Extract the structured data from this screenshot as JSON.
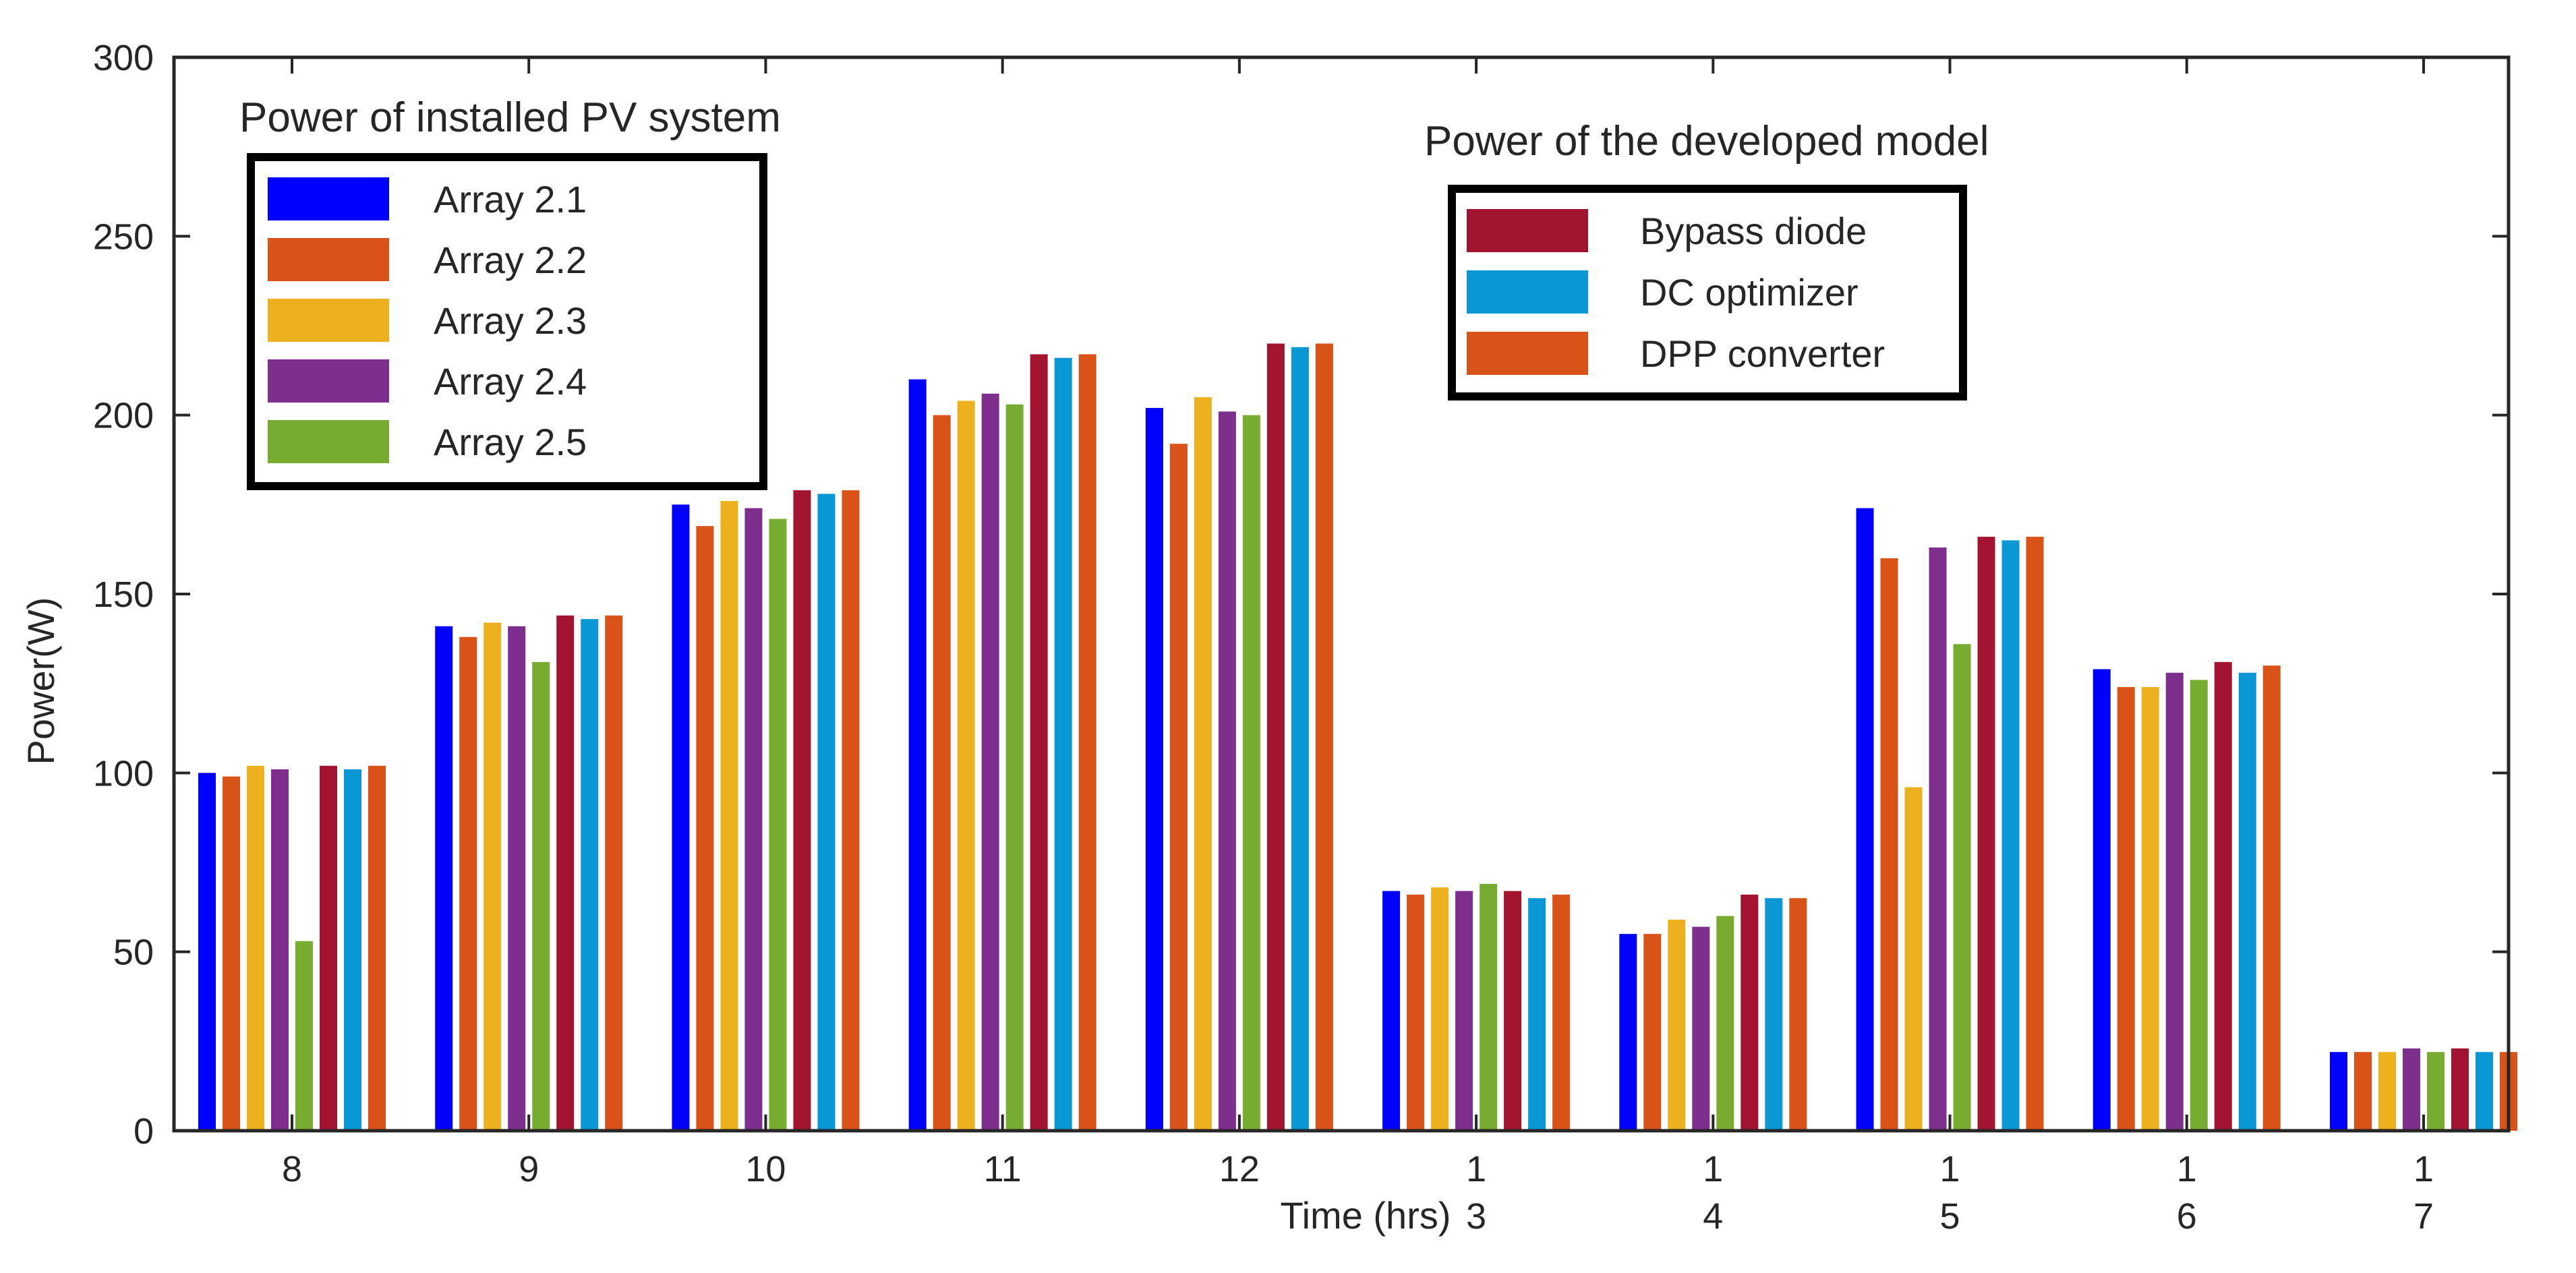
{
  "chart_data": {
    "type": "bar",
    "title": "",
    "xlabel": "Time (hrs)",
    "ylabel": "Power(W)",
    "ylim": [
      0,
      300
    ],
    "yticks": [
      0,
      50,
      100,
      150,
      200,
      250,
      300
    ],
    "grid": false,
    "categories": [
      {
        "line1": "8",
        "line2": ""
      },
      {
        "line1": "9",
        "line2": ""
      },
      {
        "line1": "10",
        "line2": ""
      },
      {
        "line1": "11",
        "line2": ""
      },
      {
        "line1": "12",
        "line2": ""
      },
      {
        "line1": "1",
        "line2": "3"
      },
      {
        "line1": "1",
        "line2": "4"
      },
      {
        "line1": "1",
        "line2": "5"
      },
      {
        "line1": "1",
        "line2": "6"
      },
      {
        "line1": "1",
        "line2": "7"
      }
    ],
    "series": [
      {
        "name": "Array 2.1",
        "color": "#0000ff",
        "values": [
          100,
          141,
          175,
          210,
          202,
          67,
          55,
          174,
          129,
          22
        ]
      },
      {
        "name": "Array 2.2",
        "color": "#d95319",
        "values": [
          99,
          138,
          169,
          200,
          192,
          66,
          55,
          160,
          124,
          22
        ]
      },
      {
        "name": "Array 2.3",
        "color": "#edb120",
        "values": [
          102,
          142,
          176,
          204,
          205,
          68,
          59,
          96,
          124,
          22
        ]
      },
      {
        "name": "Array 2.4",
        "color": "#7e2f8e",
        "values": [
          101,
          141,
          174,
          206,
          201,
          67,
          57,
          163,
          128,
          23
        ]
      },
      {
        "name": "Array 2.5",
        "color": "#77ac30",
        "values": [
          53,
          131,
          171,
          203,
          200,
          69,
          60,
          136,
          126,
          22
        ]
      },
      {
        "name": "Bypass diode",
        "color": "#a2142f",
        "values": [
          102,
          144,
          179,
          217,
          220,
          67,
          66,
          166,
          131,
          23
        ]
      },
      {
        "name": "DC optimizer",
        "color": "#0a97d6",
        "values": [
          101,
          143,
          178,
          216,
          219,
          65,
          65,
          165,
          128,
          22
        ]
      },
      {
        "name": "DPP converter",
        "color": "#d95319",
        "values": [
          102,
          144,
          179,
          217,
          220,
          66,
          65,
          166,
          130,
          22
        ]
      }
    ],
    "legends": [
      {
        "title": "Power of installed PV system",
        "placement": "top-left",
        "entries": [
          "Array 2.1",
          "Array 2.2",
          "Array 2.3",
          "Array 2.4",
          "Array 2.5"
        ]
      },
      {
        "title": "Power of the developed model",
        "placement": "top-center-right",
        "entries": [
          "Bypass diode",
          "DC optimizer",
          "DPP converter"
        ]
      }
    ]
  }
}
